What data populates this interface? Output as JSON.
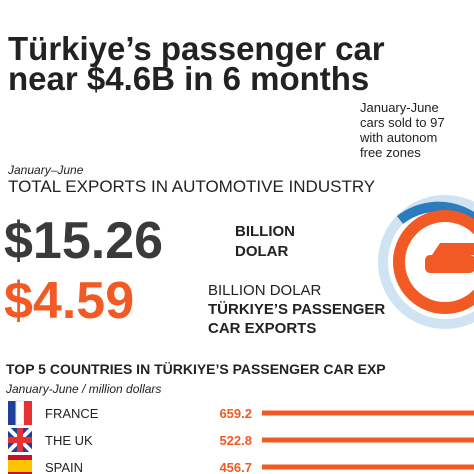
{
  "header": {
    "title_lines": [
      "Türkiye’s passenger car",
      "near $4.6B in 6 months"
    ],
    "side_note": [
      "January-June",
      "cars sold to 97",
      "with autonom",
      "free zones"
    ]
  },
  "totals": {
    "period": "January–June",
    "heading": "TOTAL EXPORTS IN AUTOMOTIVE INDUSTRY",
    "total_value": "$15.26",
    "total_unit": [
      "BILLION",
      "DOLAR"
    ],
    "car_value": "$4.59",
    "car_unit": [
      "BILLION DOLAR",
      "TÜRKIYE’S PASSENGER",
      "CAR EXPORTS"
    ]
  },
  "chart_data": {
    "type": "bar",
    "orientation": "horizontal",
    "title": "TOP 5 COUNTRIES IN TÜRKIYE’S PASSENGER CAR EXP",
    "subtitle": "January-June / million dollars",
    "categories": [
      "FRANCE",
      "THE UK",
      "SPAIN"
    ],
    "values": [
      659.2,
      522.8,
      456.7
    ],
    "color": "#f15a24"
  }
}
